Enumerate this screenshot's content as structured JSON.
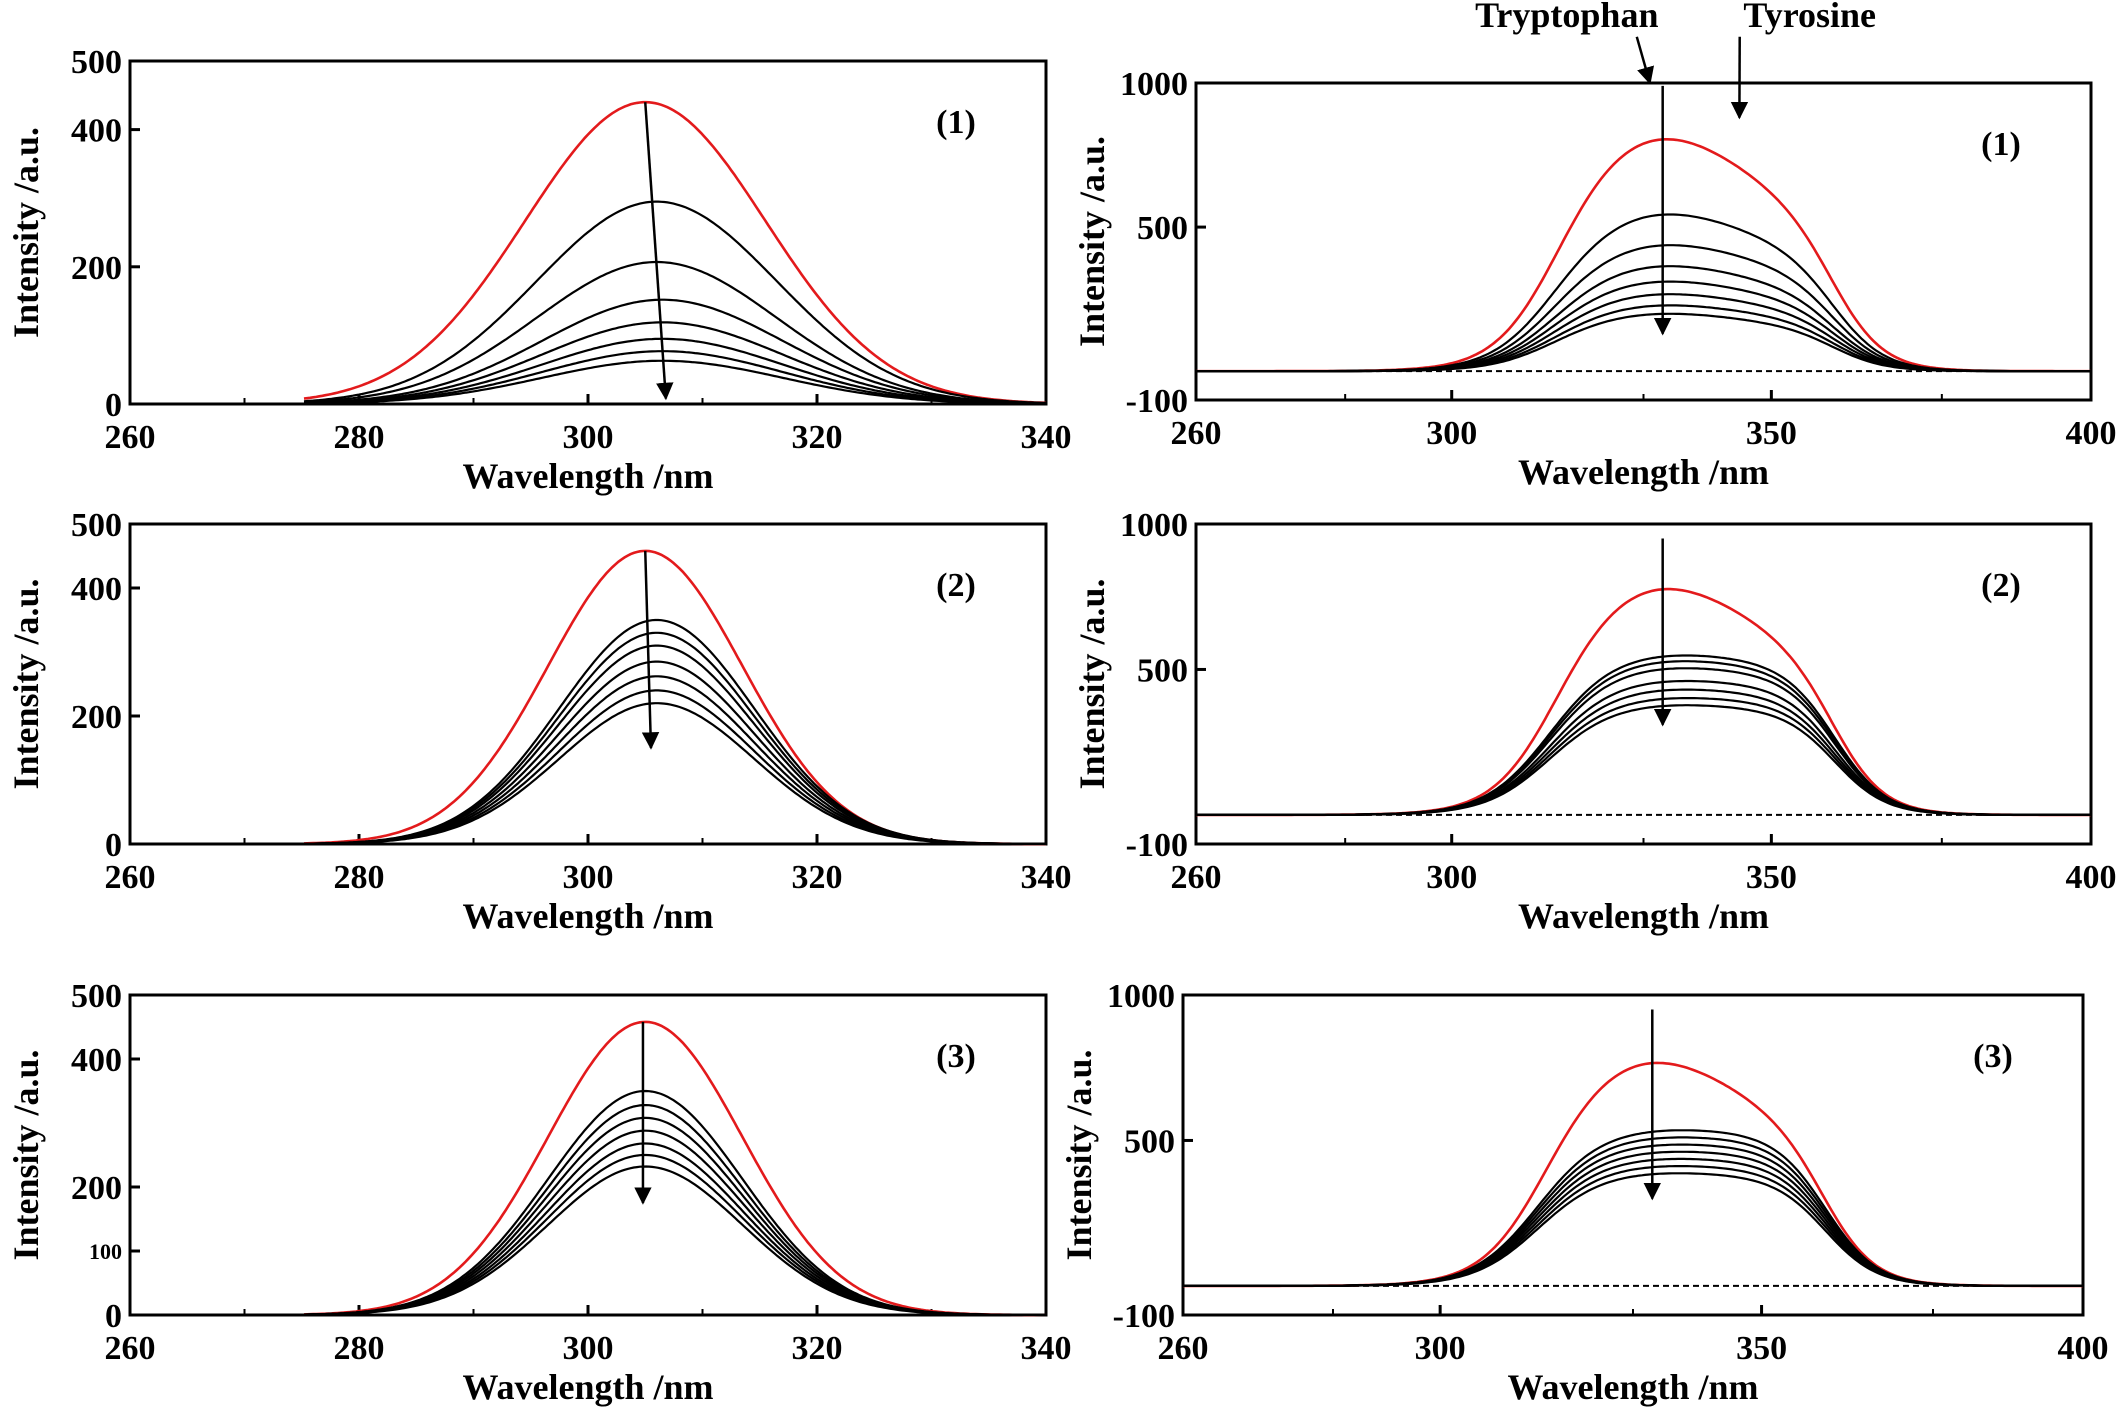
{
  "chart_data": [
    {
      "type": "line",
      "panel": "(1)",
      "xlabel": "Wavelength /nm",
      "ylabel": "Intensity /a.u.",
      "xlim": [
        260,
        340
      ],
      "ylim": [
        0,
        500
      ],
      "x_ticks": [
        "260",
        "280",
        "300",
        "320",
        "340"
      ],
      "y_ticks": [
        "0",
        "200",
        "400",
        "500"
      ],
      "series": [
        {
          "color": "#e31a1c",
          "peak_x": 305,
          "peak_y": 440,
          "width": 10.5
        },
        {
          "color": "#000000",
          "peak_x": 306,
          "peak_y": 295,
          "width": 10.5
        },
        {
          "color": "#000000",
          "peak_x": 306,
          "peak_y": 207,
          "width": 10.5
        },
        {
          "color": "#000000",
          "peak_x": 306.5,
          "peak_y": 152,
          "width": 10.5
        },
        {
          "color": "#000000",
          "peak_x": 306.5,
          "peak_y": 119,
          "width": 10.5
        },
        {
          "color": "#000000",
          "peak_x": 306.5,
          "peak_y": 95,
          "width": 10.5
        },
        {
          "color": "#000000",
          "peak_x": 306.5,
          "peak_y": 77,
          "width": 10.5
        },
        {
          "color": "#000000",
          "peak_x": 306.5,
          "peak_y": 63,
          "width": 10.5
        }
      ],
      "arrow": {
        "from": [
          305,
          440
        ],
        "to": [
          306.8,
          8
        ]
      }
    },
    {
      "type": "line",
      "panel": "(1)",
      "xlabel": "Wavelength /nm",
      "ylabel": "Intensity /a.u.",
      "xlim": [
        260,
        400
      ],
      "ylim": [
        -100,
        1000
      ],
      "x_ticks": [
        "260",
        "300",
        "350",
        "400"
      ],
      "y_ticks": [
        "-100",
        "500",
        "1000"
      ],
      "baseline": 0,
      "series": [
        {
          "color": "#e31a1c",
          "trp": 830,
          "tyr": 560
        },
        {
          "color": "#000000",
          "trp": 560,
          "tyr": 420
        },
        {
          "color": "#000000",
          "trp": 450,
          "tyr": 345
        },
        {
          "color": "#000000",
          "trp": 375,
          "tyr": 285
        },
        {
          "color": "#000000",
          "trp": 320,
          "tyr": 245
        },
        {
          "color": "#000000",
          "trp": 275,
          "tyr": 210
        },
        {
          "color": "#000000",
          "trp": 235,
          "tyr": 180
        },
        {
          "color": "#000000",
          "trp": 205,
          "tyr": 155
        }
      ],
      "arrow": {
        "from": [
          333,
          990
        ],
        "to": [
          333,
          130
        ]
      },
      "annotations": [
        {
          "text": "Tryptophan",
          "label_x": 318,
          "label_y": 1195,
          "point_x": 331,
          "point_y": 1000
        },
        {
          "text": "Tyrosine",
          "label_x": 356,
          "label_y": 1195,
          "point_x": 345,
          "point_y": 880
        }
      ]
    },
    {
      "type": "line",
      "panel": "(2)",
      "xlabel": "Wavelength /nm",
      "ylabel": "Intensity /a.u.",
      "xlim": [
        260,
        340
      ],
      "ylim": [
        0,
        500
      ],
      "x_ticks": [
        "260",
        "280",
        "300",
        "320",
        "340"
      ],
      "y_ticks": [
        "0",
        "200",
        "400",
        "500"
      ],
      "series": [
        {
          "color": "#e31a1c",
          "peak_x": 305,
          "peak_y": 458,
          "width": 8.5
        },
        {
          "color": "#000000",
          "peak_x": 306,
          "peak_y": 350,
          "width": 8.5
        },
        {
          "color": "#000000",
          "peak_x": 306,
          "peak_y": 330,
          "width": 8.5
        },
        {
          "color": "#000000",
          "peak_x": 306,
          "peak_y": 310,
          "width": 8.5
        },
        {
          "color": "#000000",
          "peak_x": 306,
          "peak_y": 285,
          "width": 8.5
        },
        {
          "color": "#000000",
          "peak_x": 306,
          "peak_y": 262,
          "width": 8.5
        },
        {
          "color": "#000000",
          "peak_x": 306,
          "peak_y": 240,
          "width": 8.5
        },
        {
          "color": "#000000",
          "peak_x": 306,
          "peak_y": 220,
          "width": 8.5
        }
      ],
      "arrow": {
        "from": [
          305,
          458
        ],
        "to": [
          305.5,
          150
        ]
      }
    },
    {
      "type": "line",
      "panel": "(2)",
      "xlabel": "Wavelength /nm",
      "ylabel": "Intensity /a.u.",
      "xlim": [
        260,
        400
      ],
      "ylim": [
        -100,
        1000
      ],
      "x_ticks": [
        "260",
        "300",
        "350",
        "400"
      ],
      "y_ticks": [
        "-100",
        "500",
        "1000"
      ],
      "baseline": 0,
      "series": [
        {
          "color": "#e31a1c",
          "trp": 800,
          "tyr": 570
        },
        {
          "color": "#000000",
          "trp": 560,
          "tyr": 520
        },
        {
          "color": "#000000",
          "trp": 540,
          "tyr": 500
        },
        {
          "color": "#000000",
          "trp": 515,
          "tyr": 480
        },
        {
          "color": "#000000",
          "trp": 470,
          "tyr": 440
        },
        {
          "color": "#000000",
          "trp": 440,
          "tyr": 410
        },
        {
          "color": "#000000",
          "trp": 410,
          "tyr": 385
        },
        {
          "color": "#000000",
          "trp": 385,
          "tyr": 360
        }
      ],
      "arrow": {
        "from": [
          333,
          950
        ],
        "to": [
          333,
          310
        ]
      }
    },
    {
      "type": "line",
      "panel": "(3)",
      "xlabel": "Wavelength /nm",
      "ylabel": "Intensity /a.u.",
      "xlim": [
        260,
        340
      ],
      "ylim": [
        0,
        500
      ],
      "x_ticks": [
        "260",
        "280",
        "300",
        "320",
        "340"
      ],
      "y_ticks": [
        "0",
        "100",
        "200",
        "400",
        "500"
      ],
      "series": [
        {
          "color": "#e31a1c",
          "peak_x": 305,
          "peak_y": 458,
          "width": 8.5
        },
        {
          "color": "#000000",
          "peak_x": 305,
          "peak_y": 350,
          "width": 8.5
        },
        {
          "color": "#000000",
          "peak_x": 305,
          "peak_y": 328,
          "width": 8.5
        },
        {
          "color": "#000000",
          "peak_x": 305,
          "peak_y": 308,
          "width": 8.5
        },
        {
          "color": "#000000",
          "peak_x": 305,
          "peak_y": 288,
          "width": 8.5
        },
        {
          "color": "#000000",
          "peak_x": 305,
          "peak_y": 268,
          "width": 8.5
        },
        {
          "color": "#000000",
          "peak_x": 305,
          "peak_y": 250,
          "width": 8.5
        },
        {
          "color": "#000000",
          "peak_x": 305,
          "peak_y": 232,
          "width": 8.5
        }
      ],
      "arrow": {
        "from": [
          304.8,
          458
        ],
        "to": [
          304.8,
          175
        ]
      }
    },
    {
      "type": "line",
      "panel": "(3)",
      "xlabel": "Wavelength /nm",
      "ylabel": "Intensity /a.u.",
      "xlim": [
        260,
        400
      ],
      "ylim": [
        -100,
        1000
      ],
      "x_ticks": [
        "260",
        "300",
        "350",
        "400"
      ],
      "y_ticks": [
        "-100",
        "500",
        "1000"
      ],
      "baseline": 0,
      "series": [
        {
          "color": "#e31a1c",
          "trp": 790,
          "tyr": 560
        },
        {
          "color": "#000000",
          "trp": 545,
          "tyr": 525
        },
        {
          "color": "#000000",
          "trp": 520,
          "tyr": 500
        },
        {
          "color": "#000000",
          "trp": 495,
          "tyr": 475
        },
        {
          "color": "#000000",
          "trp": 470,
          "tyr": 450
        },
        {
          "color": "#000000",
          "trp": 445,
          "tyr": 425
        },
        {
          "color": "#000000",
          "trp": 420,
          "tyr": 400
        },
        {
          "color": "#000000",
          "trp": 395,
          "tyr": 375
        }
      ],
      "arrow": {
        "from": [
          333,
          950
        ],
        "to": [
          333,
          300
        ]
      }
    }
  ]
}
